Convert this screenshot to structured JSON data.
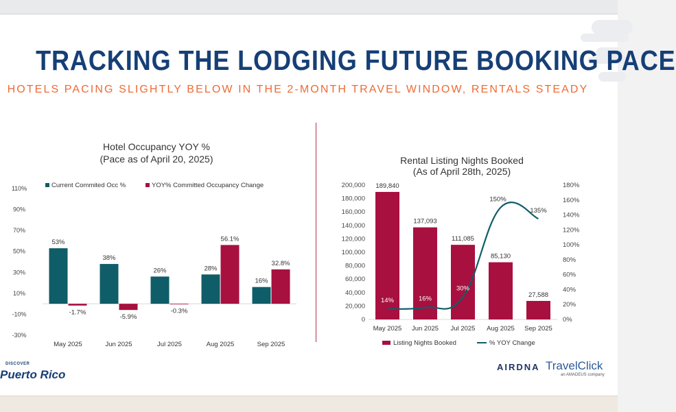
{
  "slide": {
    "title": "TRACKING THE LODGING FUTURE BOOKING PACE",
    "subtitle": "HOTELS PACING SLIGHTLY BELOW IN THE 2-MONTH TRAVEL WINDOW, RENTALS STEADY",
    "logos": {
      "left_small": "DISCOVER",
      "left_big": "Puerto Rico",
      "right1": "AIRDNA",
      "right2_main": "TravelClick",
      "right2_sub": "an AMADEUS company"
    }
  },
  "colors": {
    "teal": "#0f5d68",
    "crimson": "#a8103f",
    "title": "#163f76",
    "subtitle": "#ef6a33"
  },
  "chart_data": [
    {
      "type": "bar",
      "title": "Hotel Occupancy YOY %",
      "subtitle": "(Pace as of April 20, 2025)",
      "categories": [
        "May 2025",
        "Jun 2025",
        "Jul 2025",
        "Aug 2025",
        "Sep 2025"
      ],
      "yticks": [
        "110%",
        "90%",
        "70%",
        "50%",
        "30%",
        "10%",
        "-10%",
        "-30%"
      ],
      "ylim": [
        -30,
        110
      ],
      "legend": "top-left",
      "series": [
        {
          "name": "Current Commited Occ %",
          "color": "#0f5d68",
          "values": [
            53,
            38,
            26,
            28,
            16
          ],
          "labels": [
            "53%",
            "38%",
            "26%",
            "28%",
            "16%"
          ]
        },
        {
          "name": "YOY% Committed Occupancy Change",
          "color": "#a8103f",
          "values": [
            -1.7,
            -5.9,
            -0.3,
            56.1,
            32.8
          ],
          "labels": [
            "-1.7%",
            "-5.9%",
            "-0.3%",
            "56.1%",
            "32.8%"
          ]
        }
      ]
    },
    {
      "type": "bar",
      "title": "Rental Listing Nights Booked",
      "subtitle": "(As of April 28th, 2025)",
      "categories": [
        "May 2025",
        "Jun 2025",
        "Jul 2025",
        "Aug 2025",
        "Sep 2025"
      ],
      "yticks": [
        "200,000",
        "180,000",
        "160,000",
        "140,000",
        "120,000",
        "100,000",
        "80,000",
        "60,000",
        "40,000",
        "20,000",
        "0"
      ],
      "y2ticks": [
        "180%",
        "160%",
        "140%",
        "120%",
        "100%",
        "80%",
        "60%",
        "40%",
        "20%",
        "0%"
      ],
      "ylim": [
        0,
        200000
      ],
      "y2lim": [
        0,
        180
      ],
      "legend": "bottom",
      "series": [
        {
          "name": "Listing Nights Booked",
          "type": "bar",
          "color": "#a8103f",
          "values": [
            189840,
            137093,
            111085,
            85130,
            27588
          ],
          "labels": [
            "189,840",
            "137,093",
            "111,085",
            "85,130",
            "27,588"
          ]
        },
        {
          "name": "% YOY Change",
          "type": "line",
          "axis": "right",
          "color": "#0f5d68",
          "values": [
            14,
            16,
            30,
            150,
            135
          ],
          "labels": [
            "14%",
            "16%",
            "30%",
            "150%",
            "135%"
          ]
        }
      ]
    }
  ]
}
